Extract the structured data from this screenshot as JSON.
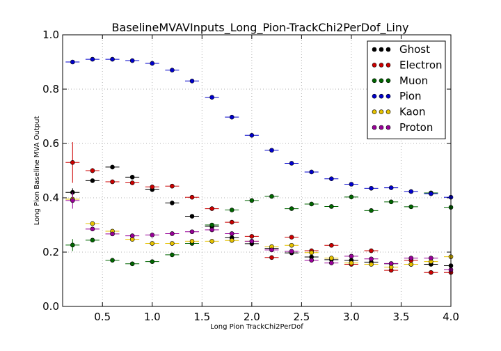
{
  "chart_data": {
    "type": "scatter",
    "title": "BaselineMVAVInputs_Long_Pion-TrackChi2PerDof_Liny",
    "xlabel": "Long Pion TrackChi2PerDof",
    "ylabel": "Long Pion Baseline MVA Output",
    "xlim": [
      0.1,
      4.0
    ],
    "ylim": [
      0.0,
      1.0
    ],
    "x_ticks": [
      "0.5",
      "1.0",
      "1.5",
      "2.0",
      "2.5",
      "3.0",
      "3.5",
      "4.0"
    ],
    "y_ticks": [
      "0.0",
      "0.2",
      "0.4",
      "0.6",
      "0.8",
      "1.0"
    ],
    "grid": true,
    "legend_position": "top-right",
    "x": [
      0.2,
      0.4,
      0.6,
      0.8,
      1.0,
      1.2,
      1.4,
      1.6,
      1.8,
      2.0,
      2.2,
      2.4,
      2.6,
      2.8,
      3.0,
      3.2,
      3.4,
      3.6,
      3.8,
      4.0
    ],
    "x_halfwidth": 0.07,
    "series": [
      {
        "name": "Ghost",
        "color": "#000000",
        "values": [
          0.42,
          0.463,
          0.513,
          0.476,
          0.43,
          0.381,
          0.332,
          0.295,
          0.253,
          0.231,
          0.214,
          0.197,
          0.182,
          0.172,
          0.17,
          0.163,
          0.157,
          0.155,
          0.155,
          0.15
        ],
        "errors": [
          0.015,
          0.006,
          0.005,
          0.005,
          0.005,
          0.005,
          0.005,
          0.005,
          0.005,
          0.005,
          0.005,
          0.005,
          0.005,
          0.005,
          0.005,
          0.005,
          0.005,
          0.005,
          0.005,
          0.005
        ]
      },
      {
        "name": "Electron",
        "color": "#cc0000",
        "values": [
          0.53,
          0.5,
          0.459,
          0.455,
          0.44,
          0.443,
          0.402,
          0.36,
          0.31,
          0.258,
          0.18,
          0.255,
          0.205,
          0.225,
          0.155,
          0.205,
          0.133,
          0.17,
          0.125,
          0.125
        ],
        "errors": [
          0.075,
          0.01,
          0.008,
          0.008,
          0.008,
          0.008,
          0.008,
          0.008,
          0.008,
          0.008,
          0.008,
          0.008,
          0.008,
          0.008,
          0.008,
          0.008,
          0.008,
          0.008,
          0.008,
          0.008
        ]
      },
      {
        "name": "Muon",
        "color": "#006600",
        "values": [
          0.226,
          0.244,
          0.17,
          0.157,
          0.165,
          0.19,
          0.232,
          0.3,
          0.355,
          0.39,
          0.405,
          0.36,
          0.377,
          0.368,
          0.403,
          0.353,
          0.385,
          0.367,
          0.418,
          0.365
        ],
        "errors": [
          0.022,
          0.008,
          0.004,
          0.004,
          0.004,
          0.004,
          0.004,
          0.004,
          0.004,
          0.004,
          0.004,
          0.004,
          0.004,
          0.004,
          0.004,
          0.004,
          0.004,
          0.004,
          0.004,
          0.004
        ]
      },
      {
        "name": "Pion",
        "color": "#0000cc",
        "values": [
          0.9,
          0.91,
          0.91,
          0.905,
          0.895,
          0.87,
          0.83,
          0.77,
          0.697,
          0.63,
          0.575,
          0.527,
          0.495,
          0.47,
          0.45,
          0.435,
          0.437,
          0.423,
          0.415,
          0.402
        ],
        "errors": [
          0.003,
          0.003,
          0.003,
          0.003,
          0.003,
          0.003,
          0.003,
          0.003,
          0.003,
          0.003,
          0.003,
          0.003,
          0.003,
          0.003,
          0.003,
          0.003,
          0.003,
          0.003,
          0.003,
          0.003
        ]
      },
      {
        "name": "Kaon",
        "color": "#e6c200",
        "values": [
          0.395,
          0.305,
          0.277,
          0.247,
          0.232,
          0.232,
          0.24,
          0.24,
          0.243,
          0.24,
          0.22,
          0.225,
          0.198,
          0.178,
          0.16,
          0.155,
          0.145,
          0.155,
          0.165,
          0.183
        ],
        "errors": [
          0.01,
          0.005,
          0.005,
          0.005,
          0.005,
          0.005,
          0.005,
          0.005,
          0.005,
          0.005,
          0.005,
          0.005,
          0.005,
          0.005,
          0.005,
          0.005,
          0.005,
          0.005,
          0.005,
          0.005
        ]
      },
      {
        "name": "Proton",
        "color": "#990099",
        "values": [
          0.39,
          0.285,
          0.267,
          0.26,
          0.263,
          0.268,
          0.275,
          0.282,
          0.268,
          0.24,
          0.208,
          0.203,
          0.17,
          0.16,
          0.185,
          0.175,
          0.158,
          0.178,
          0.178,
          0.135
        ],
        "errors": [
          0.03,
          0.005,
          0.005,
          0.005,
          0.005,
          0.005,
          0.005,
          0.005,
          0.005,
          0.005,
          0.005,
          0.005,
          0.005,
          0.005,
          0.005,
          0.005,
          0.005,
          0.005,
          0.005,
          0.005
        ]
      }
    ]
  }
}
